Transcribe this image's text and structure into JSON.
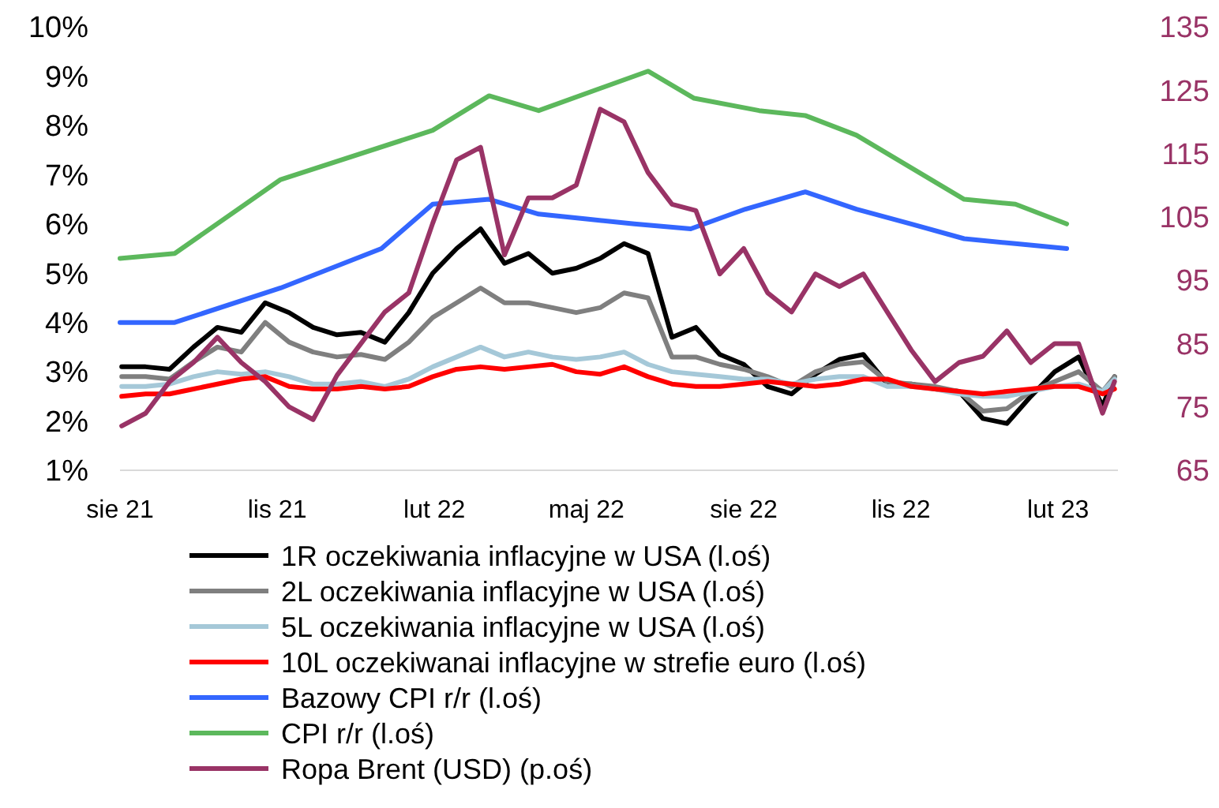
{
  "chart_data": {
    "type": "line",
    "x": [
      "2021-08-02",
      "2021-08-16",
      "2021-08-30",
      "2021-09-13",
      "2021-09-27",
      "2021-10-11",
      "2021-10-25",
      "2021-11-08",
      "2021-11-22",
      "2021-12-06",
      "2021-12-20",
      "2022-01-03",
      "2022-01-17",
      "2022-01-31",
      "2022-02-14",
      "2022-02-28",
      "2022-03-14",
      "2022-03-28",
      "2022-04-11",
      "2022-04-25",
      "2022-05-09",
      "2022-05-23",
      "2022-06-06",
      "2022-06-20",
      "2022-07-04",
      "2022-07-18",
      "2022-08-01",
      "2022-08-15",
      "2022-08-29",
      "2022-09-12",
      "2022-09-26",
      "2022-10-10",
      "2022-10-24",
      "2022-11-07",
      "2022-11-21",
      "2022-12-05",
      "2022-12-19",
      "2023-01-02",
      "2023-01-16",
      "2023-01-30",
      "2023-02-13",
      "2023-02-27",
      "2023-03-06"
    ],
    "series": [
      {
        "name": "1R oczekiwania inflacyjne w USA (l.oś)",
        "color": "#000000",
        "values": [
          3.1,
          3.1,
          3.05,
          3.5,
          3.9,
          3.8,
          4.4,
          4.2,
          3.9,
          3.75,
          3.8,
          3.6,
          4.2,
          5.0,
          5.5,
          5.9,
          5.2,
          5.4,
          5.0,
          5.1,
          5.3,
          5.6,
          5.4,
          3.7,
          3.9,
          3.35,
          3.15,
          2.7,
          2.55,
          2.95,
          3.25,
          3.35,
          2.75,
          2.75,
          2.65,
          2.6,
          2.05,
          1.95,
          2.5,
          3.0,
          3.3,
          2.3,
          2.9
        ]
      },
      {
        "name": "2L oczekiwania inflacyjne w USA (l.oś)",
        "color": "#7f7f7f",
        "values": [
          2.9,
          2.9,
          2.85,
          3.2,
          3.5,
          3.4,
          4.0,
          3.6,
          3.4,
          3.3,
          3.35,
          3.25,
          3.6,
          4.1,
          4.4,
          4.7,
          4.4,
          4.4,
          4.3,
          4.2,
          4.3,
          4.6,
          4.5,
          3.3,
          3.3,
          3.15,
          3.05,
          2.9,
          2.7,
          3.0,
          3.15,
          3.2,
          2.8,
          2.75,
          2.7,
          2.6,
          2.2,
          2.25,
          2.6,
          2.8,
          3.0,
          2.6,
          2.9
        ]
      },
      {
        "name": "5L oczekiwania inflacyjne w USA (l.oś)",
        "color": "#a5c8d8",
        "values": [
          2.7,
          2.7,
          2.75,
          2.9,
          3.0,
          2.95,
          3.0,
          2.9,
          2.75,
          2.75,
          2.8,
          2.7,
          2.85,
          3.1,
          3.3,
          3.5,
          3.3,
          3.4,
          3.3,
          3.25,
          3.3,
          3.4,
          3.15,
          3.0,
          2.95,
          2.9,
          2.85,
          2.85,
          2.75,
          2.85,
          2.9,
          2.9,
          2.7,
          2.7,
          2.65,
          2.55,
          2.5,
          2.5,
          2.6,
          2.7,
          2.75,
          2.6,
          2.85
        ]
      },
      {
        "name": "10L oczekiwanai inflacyjne w strefie euro (l.oś)",
        "color": "#ff0000",
        "values": [
          2.5,
          2.55,
          2.55,
          2.65,
          2.75,
          2.85,
          2.9,
          2.7,
          2.65,
          2.65,
          2.7,
          2.65,
          2.7,
          2.9,
          3.05,
          3.1,
          3.05,
          3.1,
          3.15,
          3.0,
          2.95,
          3.1,
          2.9,
          2.75,
          2.7,
          2.7,
          2.75,
          2.8,
          2.75,
          2.7,
          2.75,
          2.85,
          2.85,
          2.7,
          2.65,
          2.6,
          2.55,
          2.6,
          2.65,
          2.7,
          2.7,
          2.55,
          2.65
        ]
      },
      {
        "name": "Bazowy CPI r/r (l.oś)",
        "color": "#3366ff",
        "x": [
          "2021-08-01",
          "2021-09-02",
          "2021-11-03",
          "2022-01-01",
          "2022-01-31",
          "2022-03-05",
          "2022-04-03",
          "2022-05-01",
          "2022-05-29",
          "2022-07-01",
          "2022-08-02",
          "2022-09-06",
          "2022-10-06",
          "2022-11-07",
          "2022-12-08",
          "2023-01-07",
          "2023-02-06"
        ],
        "values": [
          4.0,
          4.0,
          4.7,
          5.5,
          6.4,
          6.5,
          6.2,
          6.1,
          6.0,
          5.9,
          6.3,
          6.65,
          6.3,
          6.0,
          5.7,
          5.6,
          5.5
        ]
      },
      {
        "name": "CPI r/r (l.oś)",
        "color": "#5cb85c",
        "x": [
          "2021-08-01",
          "2021-09-02",
          "2021-11-03",
          "2022-01-31",
          "2022-03-05",
          "2022-04-03",
          "2022-06-06",
          "2022-07-03",
          "2022-08-10",
          "2022-09-06",
          "2022-10-06",
          "2022-12-08",
          "2023-01-07",
          "2023-02-06"
        ],
        "values": [
          5.3,
          5.4,
          6.9,
          7.9,
          8.6,
          8.3,
          9.1,
          8.55,
          8.3,
          8.2,
          7.8,
          6.5,
          6.4,
          6.0
        ]
      },
      {
        "name": "Ropa Brent (USD) (p.oś)",
        "color": "#993366",
        "axis": "y2",
        "values": [
          72,
          74,
          79,
          82,
          86,
          82,
          79,
          75,
          73,
          80,
          85,
          90,
          93,
          104,
          114,
          116,
          99,
          108,
          108,
          110,
          122,
          120,
          112,
          107,
          106,
          96,
          100,
          93,
          90,
          96,
          94,
          96,
          90,
          84,
          79,
          82,
          83,
          87,
          82,
          85,
          85,
          74,
          79
        ]
      }
    ],
    "xlim": [
      "2021-08-01",
      "2023-03-08"
    ],
    "xticks": [
      {
        "value": "2021-08-01",
        "label": "sie 21"
      },
      {
        "value": "2021-11-01",
        "label": "lis 21"
      },
      {
        "value": "2022-02-01",
        "label": "lut 22"
      },
      {
        "value": "2022-05-01",
        "label": "maj 22"
      },
      {
        "value": "2022-08-01",
        "label": "sie 22"
      },
      {
        "value": "2022-11-01",
        "label": "lis 22"
      },
      {
        "value": "2023-02-01",
        "label": "lut 23"
      }
    ],
    "ylim": [
      1,
      10
    ],
    "yticks": [
      {
        "value": 1,
        "label": "1%"
      },
      {
        "value": 2,
        "label": "2%"
      },
      {
        "value": 3,
        "label": "3%"
      },
      {
        "value": 4,
        "label": "4%"
      },
      {
        "value": 5,
        "label": "5%"
      },
      {
        "value": 6,
        "label": "6%"
      },
      {
        "value": 7,
        "label": "7%"
      },
      {
        "value": 8,
        "label": "8%"
      },
      {
        "value": 9,
        "label": "9%"
      },
      {
        "value": 10,
        "label": "10%"
      }
    ],
    "y2lim": [
      65,
      135
    ],
    "y2ticks": [
      65,
      75,
      85,
      95,
      105,
      115,
      125,
      135
    ],
    "legend": "bottom",
    "grid": false,
    "marker": "none",
    "line_style": "solid"
  }
}
